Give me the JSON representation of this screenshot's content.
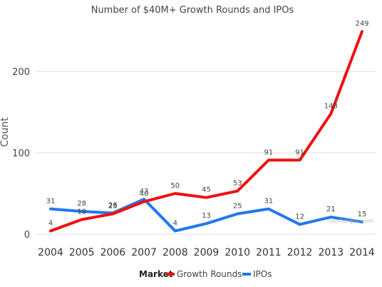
{
  "colors": {
    "growth": "#ee1111",
    "ipo": "#2277ee",
    "text": "#444444",
    "grid": "#dddddd",
    "watermark": "#bbbbbb"
  },
  "chart_data": {
    "type": "line",
    "title": "Number of $40M+ Growth Rounds and IPOs",
    "ylabel": "Count",
    "xlabel": "",
    "categories": [
      "2004",
      "2005",
      "2006",
      "2007",
      "2008",
      "2009",
      "2010",
      "2011",
      "2012",
      "2013",
      "2014"
    ],
    "ylim": [
      0,
      250
    ],
    "yticks": [
      0,
      100,
      200
    ],
    "grid": true,
    "legend": {
      "title": "Market",
      "placement": "bottom-center"
    },
    "watermark": "tomtunguz.com",
    "series": [
      {
        "name": "Growth Rounds",
        "color": "#ee1111",
        "values": [
          4,
          18,
          25,
          40,
          50,
          45,
          53,
          91,
          91,
          148,
          249
        ],
        "labels": [
          "4",
          "18",
          "25",
          "40",
          "50",
          "45",
          "53",
          "91",
          "91",
          "148",
          "249"
        ]
      },
      {
        "name": "IPOs",
        "color": "#2277ee",
        "values": [
          31,
          28,
          26,
          43,
          4,
          13,
          25,
          31,
          12,
          21,
          15
        ],
        "labels": [
          "31",
          "28",
          "26",
          "43",
          "4",
          "13",
          "25",
          "31",
          "12",
          "21",
          "15"
        ]
      }
    ]
  }
}
